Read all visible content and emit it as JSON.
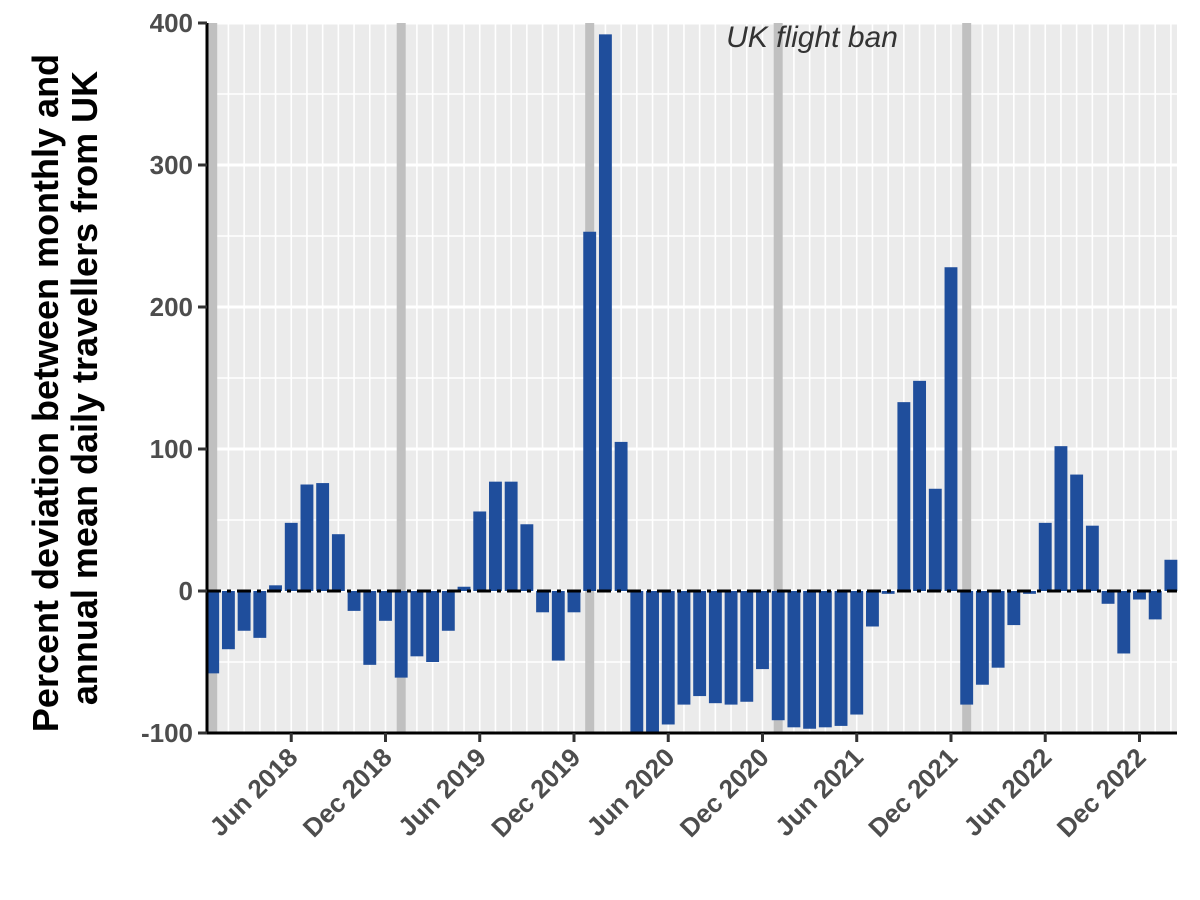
{
  "chart_data": {
    "type": "bar",
    "ylabel_lines": [
      "Percent deviation between monthly and",
      "annual mean daily travellers from UK"
    ],
    "annotation": "UK flight ban",
    "ylim": [
      -100,
      400
    ],
    "y_ticks": [
      -100,
      0,
      100,
      200,
      300,
      400
    ],
    "y_tick_labels": [
      "-100",
      "0",
      "100",
      "200",
      "300",
      "400"
    ],
    "x_tick_labels": [
      "Jun 2018",
      "Dec 2018",
      "Jun 2019",
      "Dec 2019",
      "Jun 2020",
      "Dec 2020",
      "Jun 2021",
      "Dec 2021",
      "Jun 2022",
      "Dec 2022"
    ],
    "x_tick_months": [
      "2018-06",
      "2018-12",
      "2019-06",
      "2019-12",
      "2020-06",
      "2020-12",
      "2021-06",
      "2021-12",
      "2022-06",
      "2022-12"
    ],
    "months": [
      "2018-01",
      "2018-02",
      "2018-03",
      "2018-04",
      "2018-05",
      "2018-06",
      "2018-07",
      "2018-08",
      "2018-09",
      "2018-10",
      "2018-11",
      "2018-12",
      "2019-01",
      "2019-02",
      "2019-03",
      "2019-04",
      "2019-05",
      "2019-06",
      "2019-07",
      "2019-08",
      "2019-09",
      "2019-10",
      "2019-11",
      "2019-12",
      "2020-01",
      "2020-02",
      "2020-03",
      "2020-04",
      "2020-05",
      "2020-06",
      "2020-07",
      "2020-08",
      "2020-09",
      "2020-10",
      "2020-11",
      "2020-12",
      "2021-01",
      "2021-02",
      "2021-03",
      "2021-04",
      "2021-05",
      "2021-06",
      "2021-07",
      "2021-08",
      "2021-09",
      "2021-10",
      "2021-11",
      "2021-12",
      "2022-01",
      "2022-02",
      "2022-03",
      "2022-04",
      "2022-05",
      "2022-06",
      "2022-07",
      "2022-08",
      "2022-09",
      "2022-10",
      "2022-11",
      "2022-12",
      "2023-01",
      "2023-02"
    ],
    "values": [
      -58,
      -41,
      -28,
      -33,
      4,
      48,
      75,
      76,
      40,
      -14,
      -52,
      -21,
      -61,
      -46,
      -50,
      -28,
      3,
      56,
      77,
      77,
      47,
      -15,
      -49,
      -15,
      253,
      392,
      105,
      -100,
      -100,
      -94,
      -80,
      -74,
      -79,
      -80,
      -78,
      -55,
      -91,
      -96,
      -97,
      -96,
      -95,
      -87,
      -25,
      -2,
      133,
      148,
      72,
      228,
      -80,
      -66,
      -54,
      -24,
      -2,
      48,
      102,
      82,
      46,
      -9,
      -44,
      -6,
      -20,
      22
    ],
    "bar_color": "#1f4e9c",
    "vertical_lines": [
      "2018-01",
      "2019-01",
      "2020-01",
      "2021-01",
      "2022-01"
    ],
    "vertical_line_color": "#c0c0c0",
    "panel_background": "#ebebeb",
    "zero_line": "dashed",
    "grid": true
  }
}
